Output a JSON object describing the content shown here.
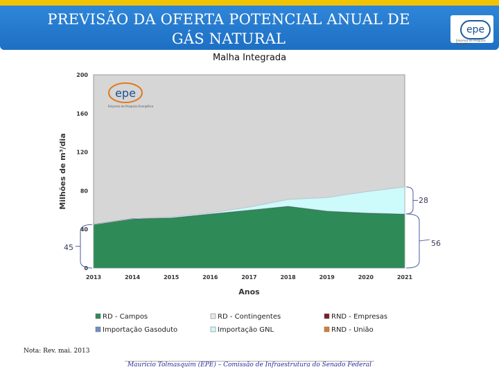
{
  "header": {
    "title_line1": "PREVISÃO DA OFERTA POTENCIAL ANUAL DE",
    "title_line2": "GÁS NATURAL",
    "logo": "epe",
    "logo_subtitle": "Empresa de Pesquisa Energética"
  },
  "subtitle": "Malha Integrada",
  "note": "Nota: Rev. mai. 2013",
  "footer": "Mauricio Tolmasquim (EPE) – Comissão de Infraestrutura do Senado Federal",
  "chart_data": {
    "type": "area",
    "stacked": true,
    "xlabel": "Anos",
    "ylabel": "Milhões de m³/dia",
    "ylim": [
      0,
      200
    ],
    "yticks": [
      0,
      40,
      80,
      120,
      160,
      200
    ],
    "categories": [
      "2013",
      "2014",
      "2015",
      "2016",
      "2017",
      "2018",
      "2019",
      "2020",
      "2021"
    ],
    "inner_logo": "epe",
    "inner_logo_subtitle": "Empresa de Pesquisa Energética",
    "series": [
      {
        "name": "RD - Campos",
        "color": "#2e8b57",
        "values": [
          45,
          51,
          52,
          56,
          60,
          64,
          59,
          57,
          56
        ]
      },
      {
        "name": "RD - Contingentes",
        "color": "#e8e8e8",
        "values": [
          0,
          0,
          0,
          0,
          0,
          0,
          0,
          0,
          0
        ]
      },
      {
        "name": "RND - Empresas",
        "color": "#7a1f2b",
        "values": [
          0,
          0,
          0,
          0,
          0,
          0,
          0,
          0,
          0
        ]
      },
      {
        "name": "Importação Gasoduto",
        "color": "#6f8fc8",
        "values": [
          0,
          0,
          0,
          0,
          0,
          0,
          0,
          0,
          0
        ]
      },
      {
        "name": "Importação GNL",
        "color": "#cdfafa",
        "values": [
          0,
          0,
          1,
          1,
          3,
          7,
          14,
          22,
          28
        ]
      },
      {
        "name": "RND - União",
        "color": "#e07a2f",
        "values": [
          0,
          0,
          0,
          0,
          0,
          0,
          0,
          0,
          0
        ]
      }
    ],
    "annotations": [
      {
        "label": "45",
        "year": "2013"
      },
      {
        "label": "56",
        "year": "2021"
      },
      {
        "label": "28",
        "year": "2021"
      }
    ],
    "legend_position": "bottom",
    "grid": false
  }
}
